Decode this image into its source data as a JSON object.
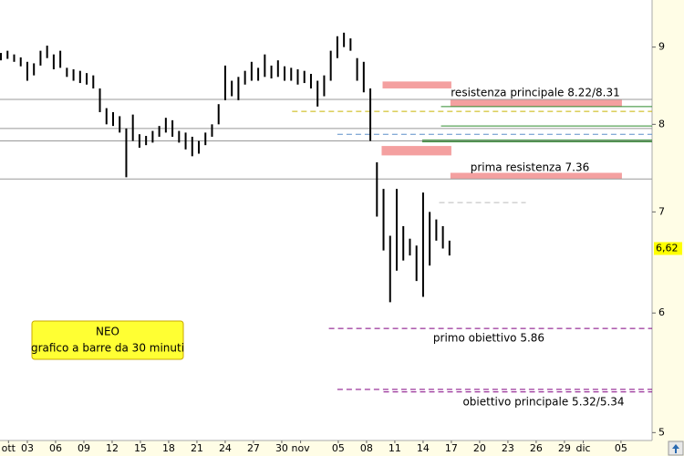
{
  "chart_data": {
    "type": "ohlc",
    "color": "#000000",
    "log": true,
    "xlim": [
      -0.9,
      68.3
    ],
    "ylim": [
      4.94,
      9.67
    ],
    "yticks": [
      9,
      8,
      7,
      6,
      5
    ],
    "last_price": {
      "value": 6.62,
      "label": "6,62",
      "color": "#ffff00"
    },
    "xticks": [
      {
        "value": 0,
        "label": "ott"
      },
      {
        "value": 2,
        "label": "03"
      },
      {
        "value": 5,
        "label": "06"
      },
      {
        "value": 8,
        "label": "09"
      },
      {
        "value": 11,
        "label": "12"
      },
      {
        "value": 14,
        "label": "15"
      },
      {
        "value": 17,
        "label": "18"
      },
      {
        "value": 20,
        "label": "21"
      },
      {
        "value": 23,
        "label": "24"
      },
      {
        "value": 26,
        "label": "27"
      },
      {
        "value": 29,
        "label": "30"
      },
      {
        "value": 31,
        "label": "nov"
      },
      {
        "value": 35,
        "label": "05"
      },
      {
        "value": 38,
        "label": "08"
      },
      {
        "value": 41,
        "label": "11"
      },
      {
        "value": 44,
        "label": "14"
      },
      {
        "value": 47,
        "label": "17"
      },
      {
        "value": 50,
        "label": "20"
      },
      {
        "value": 53,
        "label": "23"
      },
      {
        "value": 56,
        "label": "26"
      },
      {
        "value": 59,
        "label": "29"
      },
      {
        "value": 61,
        "label": "dic"
      },
      {
        "value": 65,
        "label": "05"
      }
    ],
    "x": [
      -0.8,
      -0.1,
      0.6,
      1.3,
      2.0,
      2.7,
      3.4,
      4.1,
      4.8,
      5.5,
      6.2,
      6.9,
      7.6,
      8.3,
      9.0,
      9.7,
      10.4,
      11.1,
      11.8,
      12.5,
      13.2,
      13.9,
      14.6,
      15.3,
      16.0,
      16.7,
      17.4,
      18.1,
      18.8,
      19.5,
      20.2,
      20.9,
      21.6,
      22.3,
      23.0,
      23.7,
      24.4,
      25.1,
      25.8,
      26.5,
      27.2,
      27.9,
      28.6,
      29.3,
      30.0,
      30.7,
      31.4,
      32.1,
      32.8,
      33.5,
      34.2,
      34.9,
      35.6,
      36.3,
      37.0,
      37.7,
      38.4,
      39.1,
      39.8,
      40.5,
      41.2,
      41.9,
      42.6,
      43.3,
      44.0,
      44.7,
      45.4,
      46.1,
      46.8
    ],
    "high": [
      8.92,
      8.95,
      8.9,
      8.86,
      8.8,
      8.78,
      8.95,
      9.02,
      8.9,
      8.95,
      8.72,
      8.7,
      8.68,
      8.65,
      8.62,
      8.45,
      8.2,
      8.15,
      8.1,
      7.95,
      8.12,
      7.88,
      7.86,
      7.92,
      7.98,
      8.08,
      8.05,
      7.92,
      7.9,
      7.85,
      7.8,
      7.9,
      8.0,
      8.25,
      8.75,
      8.55,
      8.6,
      8.68,
      8.8,
      8.72,
      8.9,
      8.75,
      8.82,
      8.74,
      8.72,
      8.7,
      8.68,
      8.64,
      8.55,
      8.62,
      8.95,
      9.15,
      9.2,
      9.12,
      8.85,
      8.8,
      8.45,
      7.55,
      7.25,
      6.75,
      7.25,
      6.85,
      6.72,
      6.65,
      7.21,
      7.0,
      6.92,
      6.85,
      6.7
    ],
    "low": [
      8.82,
      8.84,
      8.8,
      8.74,
      8.55,
      8.62,
      8.75,
      8.85,
      8.7,
      8.72,
      8.6,
      8.55,
      8.52,
      8.5,
      8.45,
      8.15,
      8.0,
      7.98,
      7.9,
      7.38,
      7.8,
      7.72,
      7.75,
      7.78,
      7.85,
      7.9,
      7.85,
      7.78,
      7.7,
      7.62,
      7.65,
      7.75,
      7.85,
      8.0,
      8.3,
      8.35,
      8.3,
      8.5,
      8.55,
      8.55,
      8.6,
      8.58,
      8.6,
      8.55,
      8.55,
      8.5,
      8.52,
      8.45,
      8.22,
      8.35,
      8.55,
      8.85,
      9.0,
      8.95,
      8.55,
      8.4,
      7.8,
      6.95,
      6.6,
      6.1,
      6.4,
      6.5,
      6.55,
      6.3,
      6.15,
      6.45,
      6.7,
      6.62,
      6.55
    ],
    "levels": [
      {
        "value": 8.31,
        "color": "#999999"
      },
      {
        "value": 7.95,
        "color": "#999999"
      },
      {
        "value": 7.8,
        "color": "#999999"
      },
      {
        "value": 7.36,
        "color": "#999999"
      },
      {
        "value": 8.22,
        "color": "#2e8b2e",
        "from": 45.9
      },
      {
        "value": 7.98,
        "color": "#2e8b2e",
        "from": 45.9
      },
      {
        "value": 7.81,
        "color": "#2e8b2e",
        "from": 43.9
      },
      {
        "value": 7.79,
        "color": "#2e8b2e",
        "from": 43.9
      },
      {
        "value": 8.16,
        "color": "#c8b400",
        "from": 30.1,
        "dash": true
      },
      {
        "value": 7.88,
        "color": "#5b8fc8",
        "from": 34.9,
        "dash": true
      },
      {
        "value": 7.1,
        "color": "#bbbbbb",
        "from": 45.7,
        "to": 54.9,
        "dash": true
      },
      {
        "value": 5.86,
        "color": "#800080",
        "from": 34.0,
        "dash": true
      },
      {
        "value": 5.34,
        "color": "#800080",
        "from": 34.9,
        "dash": true
      },
      {
        "value": 5.32,
        "color": "#800080",
        "from": 39.8,
        "dash": true
      }
    ],
    "zones": [
      {
        "low": 8.45,
        "high": 8.54,
        "from": 39.7,
        "to": 47.0,
        "color": "#f4a0a0"
      },
      {
        "low": 8.22,
        "high": 8.31,
        "from": 46.9,
        "to": 65.1,
        "color": "#f4a0a0"
      },
      {
        "low": 7.63,
        "high": 7.74,
        "from": 39.6,
        "to": 47.0,
        "color": "#f4a0a0"
      },
      {
        "low": 7.36,
        "high": 7.43,
        "from": 46.9,
        "to": 65.1,
        "color": "#f4a0a0"
      }
    ],
    "annotations": [
      "resistenza principale 8.22/8.31",
      "prima resistenza 7.36",
      "primo obiettivo 5.86",
      "obiettivo principale 5.32/5.34"
    ],
    "info_box": {
      "title": "NEO",
      "subtitle": "grafico a barre da 30 minuti"
    }
  }
}
